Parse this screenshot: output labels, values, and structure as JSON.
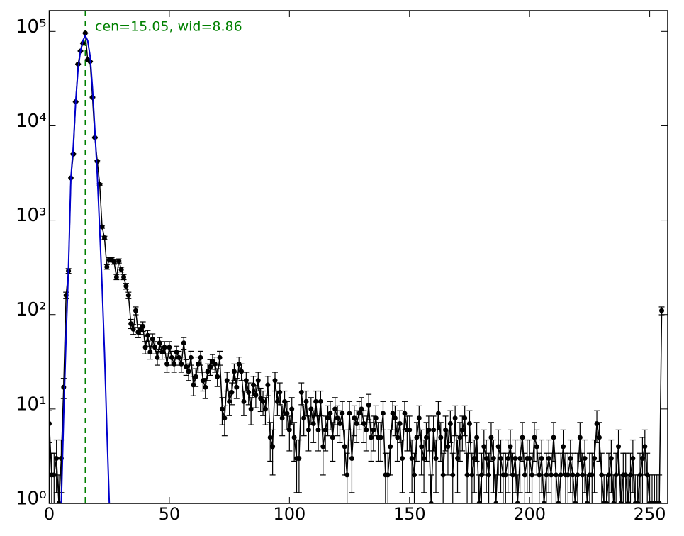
{
  "chart_data": {
    "type": "errorbar",
    "log_y": true,
    "annotation": "cen=15.05, wid=8.86",
    "vline": {
      "x": 15.05,
      "color": "#008000"
    },
    "xlim": [
      0,
      257.5
    ],
    "ylim": [
      1,
      166000
    ],
    "xticks": [
      0,
      50,
      100,
      150,
      200,
      250
    ],
    "yticks": [
      {
        "value": 1,
        "label": "10⁰"
      },
      {
        "value": 10,
        "label": "10¹"
      },
      {
        "value": 100,
        "label": "10²"
      },
      {
        "value": 1000,
        "label": "10³"
      },
      {
        "value": 10000,
        "label": "10⁴"
      },
      {
        "value": 100000,
        "label": "10⁵"
      }
    ],
    "series": [
      {
        "color": "#000000",
        "x": [
          0,
          1,
          2,
          3,
          4,
          5,
          6,
          7,
          8,
          9,
          10,
          11,
          12,
          13,
          14,
          15,
          16,
          17,
          18,
          19,
          20,
          21,
          22,
          23,
          24,
          25,
          26,
          27,
          28,
          29,
          30,
          31,
          32,
          33,
          34,
          35,
          36,
          37,
          38,
          39,
          40,
          41,
          42,
          43,
          44,
          45,
          46,
          47,
          48,
          49,
          50,
          51,
          52,
          53,
          54,
          55,
          56,
          57,
          58,
          59,
          60,
          61,
          62,
          63,
          64,
          65,
          66,
          67,
          68,
          69,
          70,
          71,
          72,
          73,
          74,
          75,
          76,
          77,
          78,
          79,
          80,
          81,
          82,
          83,
          84,
          85,
          86,
          87,
          88,
          89,
          90,
          91,
          92,
          93,
          94,
          95,
          96,
          97,
          98,
          99,
          100,
          101,
          102,
          103,
          104,
          105,
          106,
          107,
          108,
          109,
          110,
          111,
          112,
          113,
          114,
          115,
          116,
          117,
          118,
          119,
          120,
          121,
          122,
          123,
          124,
          125,
          126,
          127,
          128,
          129,
          130,
          131,
          132,
          133,
          134,
          135,
          136,
          137,
          138,
          139,
          140,
          141,
          142,
          143,
          144,
          145,
          146,
          147,
          148,
          149,
          150,
          151,
          152,
          153,
          154,
          155,
          156,
          157,
          158,
          159,
          160,
          161,
          162,
          163,
          164,
          165,
          166,
          167,
          168,
          169,
          170,
          171,
          172,
          173,
          174,
          175,
          176,
          177,
          178,
          179,
          180,
          181,
          182,
          183,
          184,
          185,
          186,
          187,
          188,
          189,
          190,
          191,
          192,
          193,
          194,
          195,
          196,
          197,
          198,
          199,
          200,
          201,
          202,
          203,
          204,
          205,
          206,
          207,
          208,
          209,
          210,
          211,
          212,
          213,
          214,
          215,
          216,
          217,
          218,
          219,
          220,
          221,
          222,
          223,
          224,
          225,
          226,
          227,
          228,
          229,
          230,
          231,
          232,
          233,
          234,
          235,
          236,
          237,
          238,
          239,
          240,
          241,
          242,
          243,
          244,
          245,
          246,
          247,
          248,
          249,
          250,
          251,
          252,
          253,
          254,
          255
        ],
        "values": [
          7,
          2,
          2,
          3,
          1,
          3,
          17,
          160,
          290,
          2800,
          5000,
          18000,
          45000,
          62000,
          75000,
          96000,
          50000,
          48000,
          20000,
          7500,
          4200,
          2400,
          850,
          650,
          320,
          380,
          380,
          360,
          250,
          370,
          300,
          250,
          200,
          160,
          80,
          70,
          110,
          65,
          70,
          75,
          45,
          60,
          40,
          55,
          45,
          35,
          50,
          40,
          45,
          30,
          45,
          35,
          30,
          40,
          35,
          30,
          50,
          28,
          25,
          35,
          18,
          22,
          30,
          35,
          20,
          17,
          25,
          28,
          32,
          30,
          22,
          35,
          10,
          8,
          20,
          12,
          15,
          25,
          17,
          30,
          25,
          12,
          20,
          15,
          10,
          18,
          14,
          20,
          13,
          12,
          10,
          18,
          5,
          4,
          20,
          12,
          15,
          8,
          12,
          9,
          6,
          10,
          5,
          3,
          3,
          15,
          8,
          12,
          6,
          10,
          7,
          12,
          6,
          12,
          4,
          6,
          8,
          9,
          5,
          10,
          8,
          7,
          9,
          4,
          2,
          9,
          3,
          8,
          7,
          9,
          10,
          7,
          6,
          11,
          5,
          6,
          8,
          5,
          5,
          9,
          2,
          2,
          4,
          9,
          8,
          5,
          7,
          3,
          9,
          6,
          6,
          3,
          2,
          5,
          8,
          4,
          3,
          5,
          6,
          1,
          6,
          3,
          9,
          5,
          2,
          6,
          4,
          7,
          2,
          8,
          3,
          5,
          6,
          8,
          2,
          7,
          2,
          3,
          5,
          1,
          2,
          4,
          3,
          2,
          5,
          3,
          1,
          4,
          3,
          2,
          2,
          3,
          4,
          2,
          3,
          1,
          3,
          5,
          2,
          3,
          3,
          2,
          5,
          4,
          2,
          3,
          1,
          2,
          3,
          2,
          5,
          2,
          1,
          2,
          4,
          2,
          2,
          3,
          2,
          1,
          2,
          5,
          2,
          3,
          1,
          2,
          2,
          3,
          7,
          5,
          2,
          1,
          1,
          2,
          3,
          1,
          2,
          4,
          1,
          2,
          2,
          1,
          2,
          3,
          1,
          1,
          2,
          3,
          4,
          2,
          1,
          1,
          1,
          1,
          1,
          110
        ],
        "errors": [
          2.6,
          1.4,
          1.4,
          1.7,
          1,
          1.7,
          4.1,
          12.6,
          17,
          53,
          71,
          134,
          212,
          249,
          274,
          310,
          224,
          219,
          141,
          87,
          65,
          49,
          29.2,
          25.5,
          17.9,
          19.5,
          19.5,
          19,
          15.8,
          19.2,
          17.3,
          15.8,
          14.1,
          12.6,
          8.9,
          8.4,
          10.5,
          8.1,
          8.4,
          8.7,
          6.7,
          7.7,
          6.3,
          7.4,
          6.7,
          5.9,
          7.1,
          6.3,
          6.7,
          5.5,
          6.7,
          5.9,
          5.5,
          6.3,
          5.9,
          5.5,
          7.1,
          5.3,
          5,
          5.9,
          4.2,
          4.7,
          5.5,
          5.9,
          4.5,
          4.1,
          5,
          5.3,
          5.7,
          5.5,
          4.7,
          5.9,
          3.2,
          2.8,
          4.5,
          3.5,
          3.9,
          5,
          4.1,
          5.5,
          5,
          3.5,
          4.5,
          3.9,
          3.2,
          4.2,
          3.7,
          4.5,
          3.6,
          3.5,
          3.2,
          4.2,
          2.2,
          2,
          4.5,
          3.5,
          3.9,
          2.8,
          3.5,
          3,
          2.4,
          3.2,
          2.2,
          1.7,
          1.7,
          3.9,
          2.8,
          3.5,
          2.4,
          3.2,
          2.6,
          3.5,
          2.4,
          3.5,
          2,
          2.4,
          2.8,
          3,
          2.2,
          3.2,
          2.8,
          2.6,
          3,
          2,
          1.4,
          3,
          1.7,
          2.8,
          2.6,
          3,
          3.2,
          2.6,
          2.4,
          3.3,
          2.2,
          2.4,
          2.8,
          2.2,
          2.2,
          3,
          1.4,
          1.4,
          2,
          3,
          2.8,
          2.2,
          2.6,
          1.7,
          3,
          2.4,
          2.4,
          1.7,
          1.4,
          2.2,
          2.8,
          2,
          1.7,
          2.2,
          2.4,
          1,
          2.4,
          1.7,
          3,
          2.2,
          1.4,
          2.4,
          2,
          2.6,
          1.4,
          2.8,
          1.7,
          2.2,
          2.4,
          2.8,
          1.4,
          2.6,
          1.4,
          1.7,
          2.2,
          1,
          1.4,
          2,
          1.7,
          1.4,
          2.2,
          1.7,
          1,
          2,
          1.7,
          1.4,
          1.4,
          1.7,
          2,
          1.4,
          1.7,
          1,
          1.7,
          2.2,
          1.4,
          1.7,
          1.7,
          1.4,
          2.2,
          2,
          1.4,
          1.7,
          1,
          1.4,
          1.7,
          1.4,
          2.2,
          1.4,
          1,
          1.4,
          2,
          1.4,
          1.4,
          1.7,
          1.4,
          1,
          1.4,
          2.2,
          1.4,
          1.7,
          1,
          1.4,
          1.4,
          1.7,
          2.6,
          2.2,
          1.4,
          1,
          1,
          1.4,
          1.7,
          1,
          1.4,
          2,
          1,
          1.4,
          1.4,
          1,
          1.4,
          1.7,
          1,
          1,
          1.4,
          2,
          2,
          1.4,
          1,
          1,
          1,
          1,
          1,
          10.5
        ]
      },
      {
        "color": "#0000cc",
        "line_only": true,
        "x": [
          5,
          6,
          7,
          8,
          9,
          10,
          11,
          12,
          13,
          14,
          15,
          16,
          17,
          18,
          19,
          20,
          21,
          22,
          23,
          24,
          25
        ],
        "values": [
          1,
          8.5,
          57,
          310,
          2800,
          6000,
          18000,
          40000,
          62000,
          80000,
          90000,
          80000,
          55000,
          25000,
          9000,
          3000,
          800,
          200,
          40,
          6,
          1
        ]
      }
    ]
  }
}
